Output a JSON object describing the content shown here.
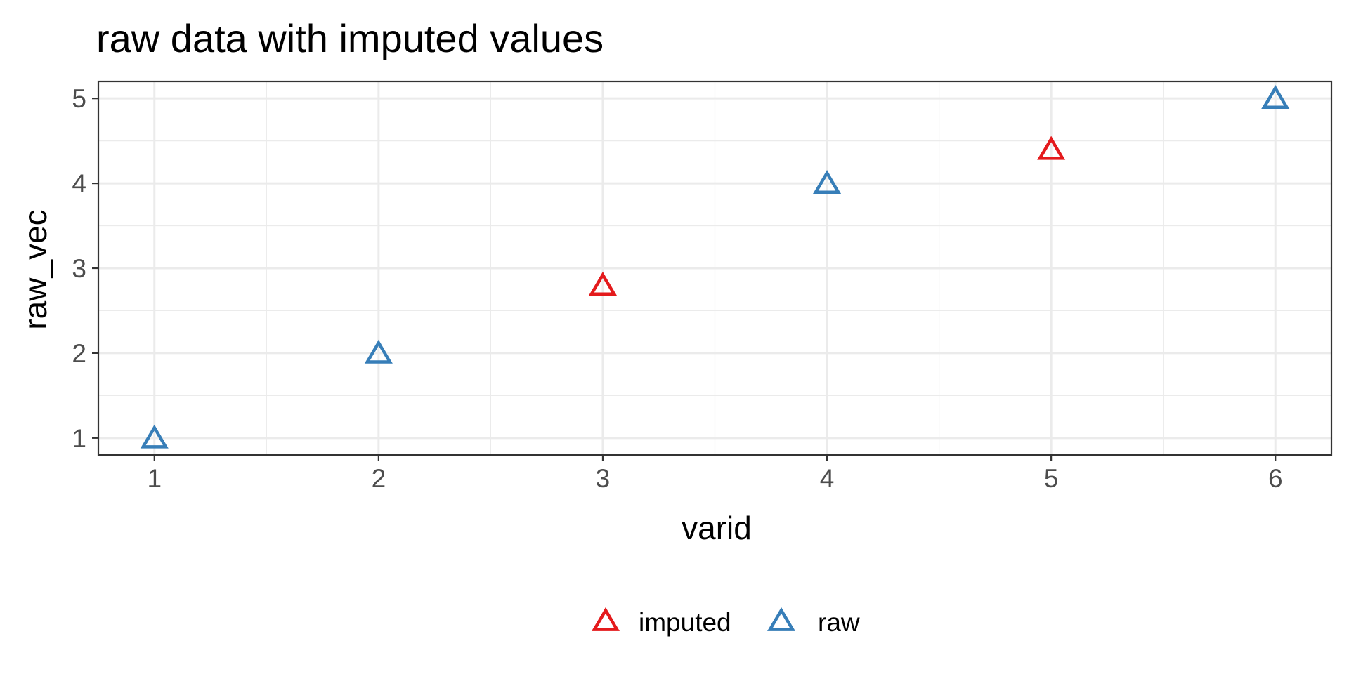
{
  "chart_data": {
    "type": "scatter",
    "title": "raw data with imputed values",
    "xlabel": "varid",
    "ylabel": "raw_vec",
    "xlim": [
      0.75,
      6.25
    ],
    "ylim": [
      0.8,
      5.2
    ],
    "x_ticks": [
      "1",
      "2",
      "3",
      "4",
      "5",
      "6"
    ],
    "y_ticks": [
      "1",
      "2",
      "3",
      "4",
      "5"
    ],
    "grid": true,
    "legend_position": "bottom",
    "marker": "open-triangle",
    "series": [
      {
        "name": "imputed",
        "color": "#e41a1c",
        "points": [
          {
            "x": 3,
            "y": 2.8
          },
          {
            "x": 5,
            "y": 4.4
          }
        ]
      },
      {
        "name": "raw",
        "color": "#377eb8",
        "points": [
          {
            "x": 1,
            "y": 1
          },
          {
            "x": 2,
            "y": 2
          },
          {
            "x": 4,
            "y": 4
          },
          {
            "x": 6,
            "y": 5
          }
        ]
      }
    ]
  }
}
